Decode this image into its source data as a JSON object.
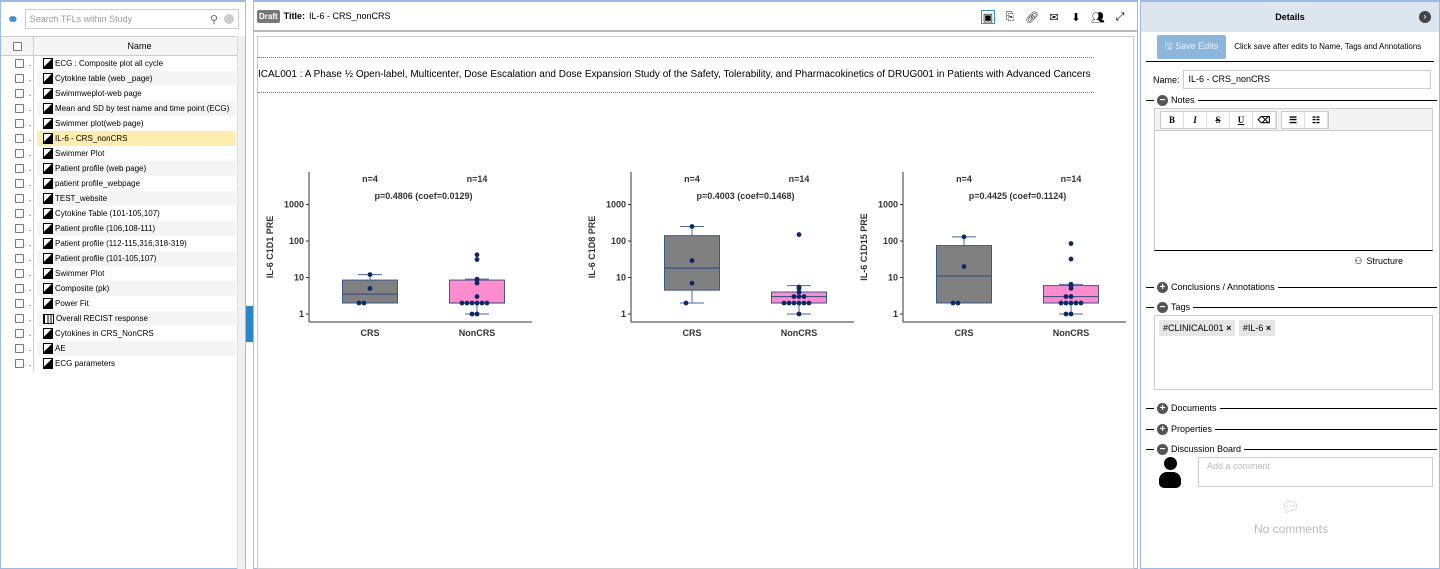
{
  "left": {
    "search_placeholder": "Search TFLs within Study",
    "column_name": "Name",
    "items": [
      {
        "label": "ECG : Composite plot all cycle",
        "icon": "figure"
      },
      {
        "label": "Cytokine table (web _page)",
        "icon": "figure"
      },
      {
        "label": "Swimmweplot-web page",
        "icon": "figure"
      },
      {
        "label": "Mean and SD by test name and time point (ECG)",
        "icon": "figure"
      },
      {
        "label": "Swimmer plot(web page)",
        "icon": "figure"
      },
      {
        "label": "IL-6 - CRS_nonCRS",
        "icon": "figure",
        "selected": true
      },
      {
        "label": "Swimmer Plot",
        "icon": "figure"
      },
      {
        "label": "Patient profile (web page)",
        "icon": "figure"
      },
      {
        "label": "patient profile_webpage",
        "icon": "figure"
      },
      {
        "label": "TEST_website",
        "icon": "figure"
      },
      {
        "label": "Cytokine Table (101-105,107)",
        "icon": "figure"
      },
      {
        "label": "Patient profile (106,108-111)",
        "icon": "figure"
      },
      {
        "label": "Patient profile (112-115,316,318-319)",
        "icon": "figure"
      },
      {
        "label": "Patient profile (101-105,107)",
        "icon": "figure"
      },
      {
        "label": "Swimmer Plot",
        "icon": "figure"
      },
      {
        "label": "Composite (pk)",
        "icon": "figure"
      },
      {
        "label": "Power Fit",
        "icon": "figure"
      },
      {
        "label": "Overall RECIST response",
        "icon": "table"
      },
      {
        "label": "Cytokines in CRS_NonCRS",
        "icon": "figure"
      },
      {
        "label": "AE",
        "icon": "figure"
      },
      {
        "label": "ECG parameters",
        "icon": "figure"
      }
    ]
  },
  "main": {
    "draft": "Draft",
    "title_label": "Title:",
    "title": "IL-6 - CRS_nonCRS",
    "study": "ICAL001 : A Phase ½ Open-label, Multicenter, Dose Escalation and Dose Expansion Study of the Safety, Tolerability, and Pharmacokinetics of DRUG001 in Patients with Advanced Cancers",
    "tools": [
      "image-icon",
      "export-icon",
      "link-icon",
      "email-icon",
      "download-icon",
      "users-icon",
      "expand-icon"
    ]
  },
  "chart_data": [
    {
      "type": "box",
      "ylabel": "IL-6 C1D1 PRE",
      "yscale": "log",
      "ylim": [
        0.8,
        5000
      ],
      "yticks": [
        "1",
        "10",
        "100",
        "1000"
      ],
      "categories": [
        "CRS",
        "NonCRS"
      ],
      "n_labels": [
        "n=4",
        "n=14"
      ],
      "annotation": "p=0.4806 (coef=0.0129)",
      "boxes": [
        {
          "q1": 2,
          "median": 3.5,
          "q3": 8.5,
          "lo": 2,
          "hi": 12,
          "points": [
            12,
            5,
            2,
            2
          ]
        },
        {
          "q1": 2,
          "median": 2,
          "q3": 8.5,
          "lo": 1,
          "hi": 9,
          "points": [
            42,
            31,
            9,
            8.5,
            7,
            3,
            2,
            2,
            2,
            2,
            2,
            2,
            1,
            1
          ]
        }
      ]
    },
    {
      "type": "box",
      "ylabel": "IL-6 C1D8 PRE",
      "yscale": "log",
      "ylim": [
        0.8,
        5000
      ],
      "yticks": [
        "1",
        "10",
        "100",
        "1000"
      ],
      "categories": [
        "CRS",
        "NonCRS"
      ],
      "n_labels": [
        "n=4",
        "n=14"
      ],
      "annotation": "p=0.4003 (coef=0.1468)",
      "boxes": [
        {
          "q1": 4.5,
          "median": 18,
          "q3": 140,
          "lo": 2,
          "hi": 250,
          "points": [
            250,
            29,
            7,
            2
          ]
        },
        {
          "q1": 2,
          "median": 3,
          "q3": 4,
          "lo": 1,
          "hi": 6,
          "points": [
            150,
            5.5,
            5,
            4,
            3,
            3,
            3,
            2,
            2,
            2,
            2,
            2,
            2,
            1
          ]
        }
      ]
    },
    {
      "type": "box",
      "ylabel": "IL-6 C1D15 PRE",
      "yscale": "log",
      "ylim": [
        0.8,
        5000
      ],
      "yticks": [
        "1",
        "10",
        "100",
        "1000"
      ],
      "categories": [
        "CRS",
        "NonCRS"
      ],
      "n_labels": [
        "n=4",
        "n=14"
      ],
      "annotation": "p=0.4425 (coef=0.1124)",
      "boxes": [
        {
          "q1": 2,
          "median": 11,
          "q3": 75,
          "lo": 2,
          "hi": 130,
          "points": [
            130,
            20,
            2,
            2
          ]
        },
        {
          "q1": 2,
          "median": 3,
          "q3": 6,
          "lo": 1,
          "hi": 6.5,
          "points": [
            85,
            32,
            6.5,
            6,
            5,
            3,
            3,
            2,
            2,
            2,
            2,
            2,
            1,
            1
          ]
        }
      ]
    }
  ],
  "colors": {
    "crs_box": "#808080",
    "noncrs_box": "#ff8ccf",
    "points": "#0a2a66",
    "accent": "#2d86c6"
  },
  "details": {
    "title": "Details",
    "save_label": "Save Edits",
    "save_hint": "Click save after edits to Name, Tags and Annotations",
    "name_label": "Name:",
    "name_value": "IL-6 - CRS_nonCRS",
    "notes": "Notes",
    "editor_buttons": [
      "B",
      "I",
      "S",
      "U",
      "⌫",
      "☰",
      "☷"
    ],
    "structure": "Structure",
    "conclusions": "Conclusions / Annotations",
    "tags_label": "Tags",
    "tags": [
      "#CLINICAL001",
      "#IL-6"
    ],
    "documents": "Documents",
    "properties": "Properties",
    "discussion": "Discussion Board",
    "comment_placeholder": "Add a comment",
    "no_comments": "No comments"
  }
}
